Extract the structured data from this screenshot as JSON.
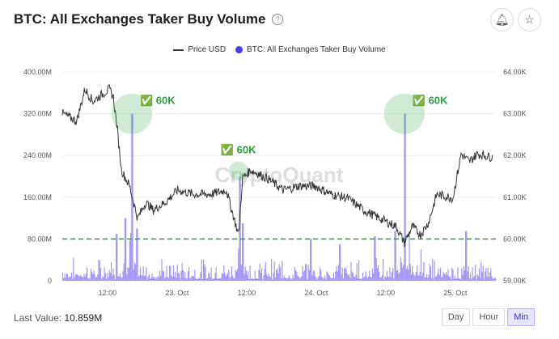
{
  "header": {
    "title": "BTC: All Exchanges Taker Buy Volume",
    "help_icon": "?",
    "bell_icon": "bell-icon",
    "star_icon": "star-icon"
  },
  "footer": {
    "last_value_label": "Last Value:",
    "last_value": "10.859M",
    "buttons": [
      "Day",
      "Hour",
      "Min"
    ],
    "active": "Min"
  },
  "watermark": "CryptoQuant",
  "chart_data": {
    "type": "line+bar",
    "title": "BTC: All Exchanges Taker Buy Volume",
    "legend": [
      "Price USD",
      "BTC: All Exchanges Taker Buy Volume"
    ],
    "legend_placement": "top-center",
    "x_unit": "hours since 22 Oct 00:00",
    "x_range": [
      4.2,
      79
    ],
    "x_ticks": [
      {
        "h": 12,
        "label": "12:00"
      },
      {
        "h": 24,
        "label": "23. Oct"
      },
      {
        "h": 36,
        "label": "12:00"
      },
      {
        "h": 48,
        "label": "24. Oct"
      },
      {
        "h": 60,
        "label": "12:00"
      },
      {
        "h": 72,
        "label": "25. Oct"
      }
    ],
    "y_left": {
      "range": [
        0,
        400
      ],
      "unit": "M",
      "ticks": [
        "0",
        "80.00M",
        "160.00M",
        "240.00M",
        "320.00M",
        "400.00M"
      ]
    },
    "y_right": {
      "range": [
        59000,
        64000
      ],
      "ticks": [
        "59.00K",
        "60.00K",
        "61.00K",
        "62.00K",
        "63.00K",
        "64.00K"
      ]
    },
    "threshold_line": {
      "value": 80,
      "color": "#2a9d3a"
    },
    "price": [
      [
        4.2,
        63010
      ],
      [
        6.7,
        62820
      ],
      [
        8.1,
        63590
      ],
      [
        9.5,
        63300
      ],
      [
        12.3,
        63590
      ],
      [
        13,
        63400
      ],
      [
        13.7,
        62620
      ],
      [
        14.4,
        61650
      ],
      [
        15.8,
        61270
      ],
      [
        17.2,
        60490
      ],
      [
        18.6,
        60880
      ],
      [
        19.9,
        60690
      ],
      [
        22,
        60880
      ],
      [
        24.1,
        61170
      ],
      [
        26.9,
        61070
      ],
      [
        29.7,
        61070
      ],
      [
        32.5,
        61170
      ],
      [
        34.6,
        60100
      ],
      [
        35.3,
        61460
      ],
      [
        36.7,
        61650
      ],
      [
        39.5,
        61460
      ],
      [
        42.3,
        61170
      ],
      [
        45.1,
        61270
      ],
      [
        47.8,
        61270
      ],
      [
        50.6,
        61070
      ],
      [
        53.4,
        60980
      ],
      [
        56.2,
        60690
      ],
      [
        59,
        60490
      ],
      [
        61.8,
        60300
      ],
      [
        63.2,
        59910
      ],
      [
        64.6,
        60300
      ],
      [
        66,
        60100
      ],
      [
        67.4,
        60400
      ],
      [
        68.8,
        61070
      ],
      [
        71.6,
        60980
      ],
      [
        73,
        62040
      ],
      [
        74.4,
        61850
      ],
      [
        75.8,
        62040
      ],
      [
        78.5,
        61950
      ]
    ],
    "volume_spikes": [
      [
        13.5,
        90
      ],
      [
        15,
        120
      ],
      [
        16.2,
        320
      ],
      [
        17,
        100
      ],
      [
        34.8,
        200
      ],
      [
        35.2,
        110
      ],
      [
        47,
        80
      ],
      [
        52,
        70
      ],
      [
        58,
        85
      ],
      [
        61.5,
        95
      ],
      [
        63.2,
        320
      ],
      [
        64,
        90
      ],
      [
        66,
        60
      ],
      [
        73.8,
        95
      ]
    ],
    "annotations": [
      {
        "h": 16.2,
        "v": 320,
        "label": "✅ 60K"
      },
      {
        "h": 34.6,
        "v": 210,
        "label": "✅ 60K"
      },
      {
        "h": 63.2,
        "v": 320,
        "label": "✅ 60K"
      }
    ],
    "colors": {
      "price": "#333333",
      "volume": "#7b6cf0",
      "annotation": "#2e9e3e"
    }
  }
}
